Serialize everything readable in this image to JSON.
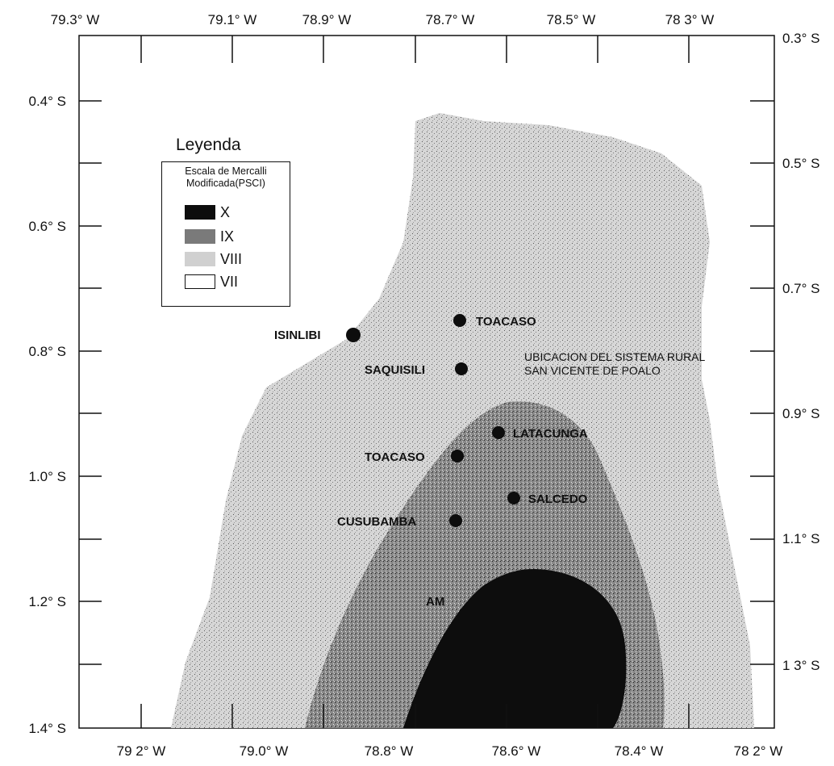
{
  "legend": {
    "title": "Leyenda",
    "subtitle_line1": "Escala de Mercalli",
    "subtitle_line2": "Modificada(PSCI)",
    "items": [
      {
        "label": "X",
        "color": "#0d0d0d"
      },
      {
        "label": "IX",
        "color": "#7a7a7a"
      },
      {
        "label": "VIII",
        "color": "#c8c8c8"
      },
      {
        "label": "VII",
        "color": "#ffffff"
      }
    ]
  },
  "axes": {
    "top_ticks": [
      "79.3° W",
      "79.1° W",
      "78.9° W",
      "78.7° W",
      "78.5° W",
      "78 3° W"
    ],
    "bottom_ticks": [
      "79 2° W",
      "79.0° W",
      "78.8° W",
      "78.6° W",
      "78.4° W",
      "78 2° W"
    ],
    "left_ticks": [
      "0.4° S",
      "0.6° S",
      "0.8° S",
      "1.0° S",
      "1.2° S",
      "1.4° S"
    ],
    "right_ticks": [
      "0.3° S",
      "0.5° S",
      "0.7° S",
      "0.9° S",
      "1.1° S",
      "1 3° S"
    ]
  },
  "towns": {
    "toacaso_north": "TOACASO",
    "isinlibi": "ISINLIBI",
    "saquisili": "SAQUISILI",
    "latacunga": "LATACUNGA",
    "toacaso_south": "TOACASO",
    "salcedo": "SALCEDO",
    "cusubamba": "CUSUBAMBA",
    "ambato_partial": "AM"
  },
  "annotation": {
    "line1": "UBICACION DEL SISTEMA RURAL",
    "line2": "SAN VICENTE DE POALO"
  },
  "zone_colors": {
    "zone_x": "#0d0d0d",
    "zone_ix": "#7a7a7a",
    "zone_viii": "#c8c8c8",
    "zone_vii": "#ffffff"
  }
}
